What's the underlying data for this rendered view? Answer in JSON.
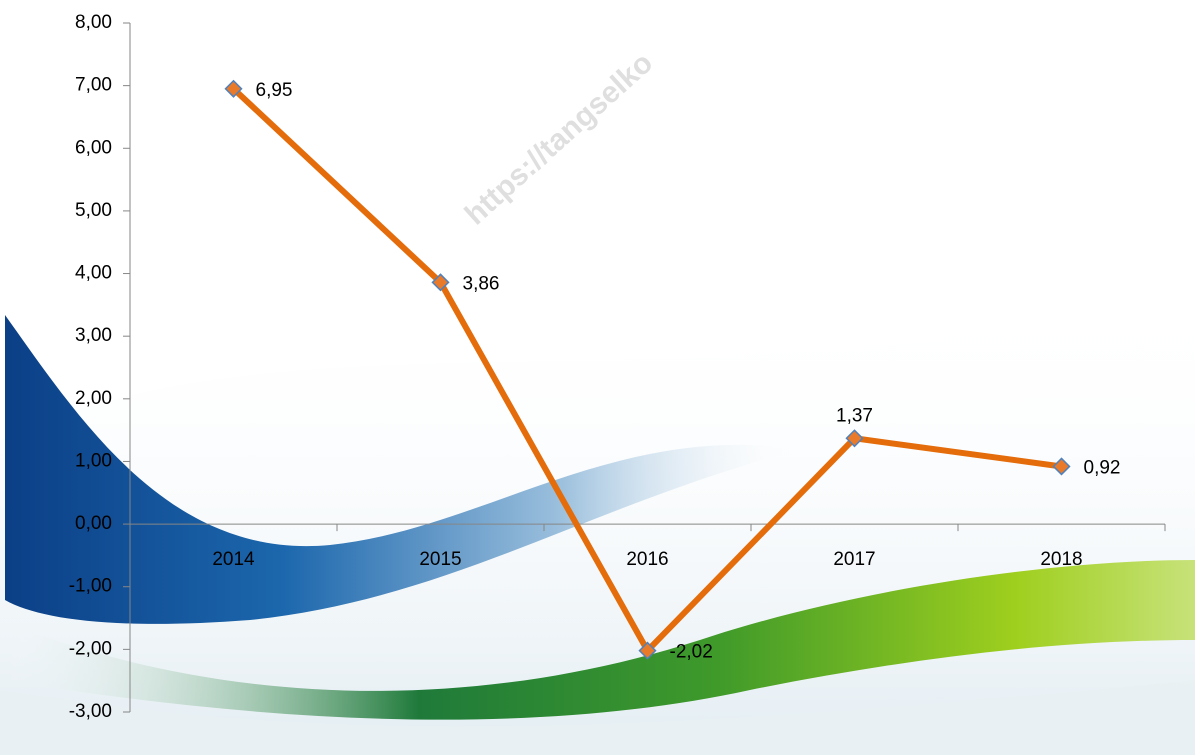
{
  "chart_data": {
    "type": "line",
    "watermark": "https://tangselko",
    "categories": [
      "2014",
      "2015",
      "2016",
      "2017",
      "2018"
    ],
    "values": [
      6.95,
      3.86,
      -2.02,
      1.37,
      0.92
    ],
    "value_labels": [
      "6,95",
      "3,86",
      "-2,02",
      "1,37",
      "0,92"
    ],
    "color": "#e46c0a",
    "marker_color": "#e87a2a",
    "marker_edge_color": "#4f81bd",
    "ylim": [
      -3,
      8
    ],
    "yticks": [
      {
        "value": -3,
        "label": "-3,00"
      },
      {
        "value": -2,
        "label": "-2,00"
      },
      {
        "value": -1,
        "label": "-1,00"
      },
      {
        "value": 0,
        "label": "0,00"
      },
      {
        "value": 1,
        "label": "1,00"
      },
      {
        "value": 2,
        "label": "2,00"
      },
      {
        "value": 3,
        "label": "3,00"
      },
      {
        "value": 4,
        "label": "4,00"
      },
      {
        "value": 5,
        "label": "5,00"
      },
      {
        "value": 6,
        "label": "6,00"
      },
      {
        "value": 7,
        "label": "7,00"
      },
      {
        "value": 8,
        "label": "8,00"
      }
    ],
    "grid": false
  }
}
